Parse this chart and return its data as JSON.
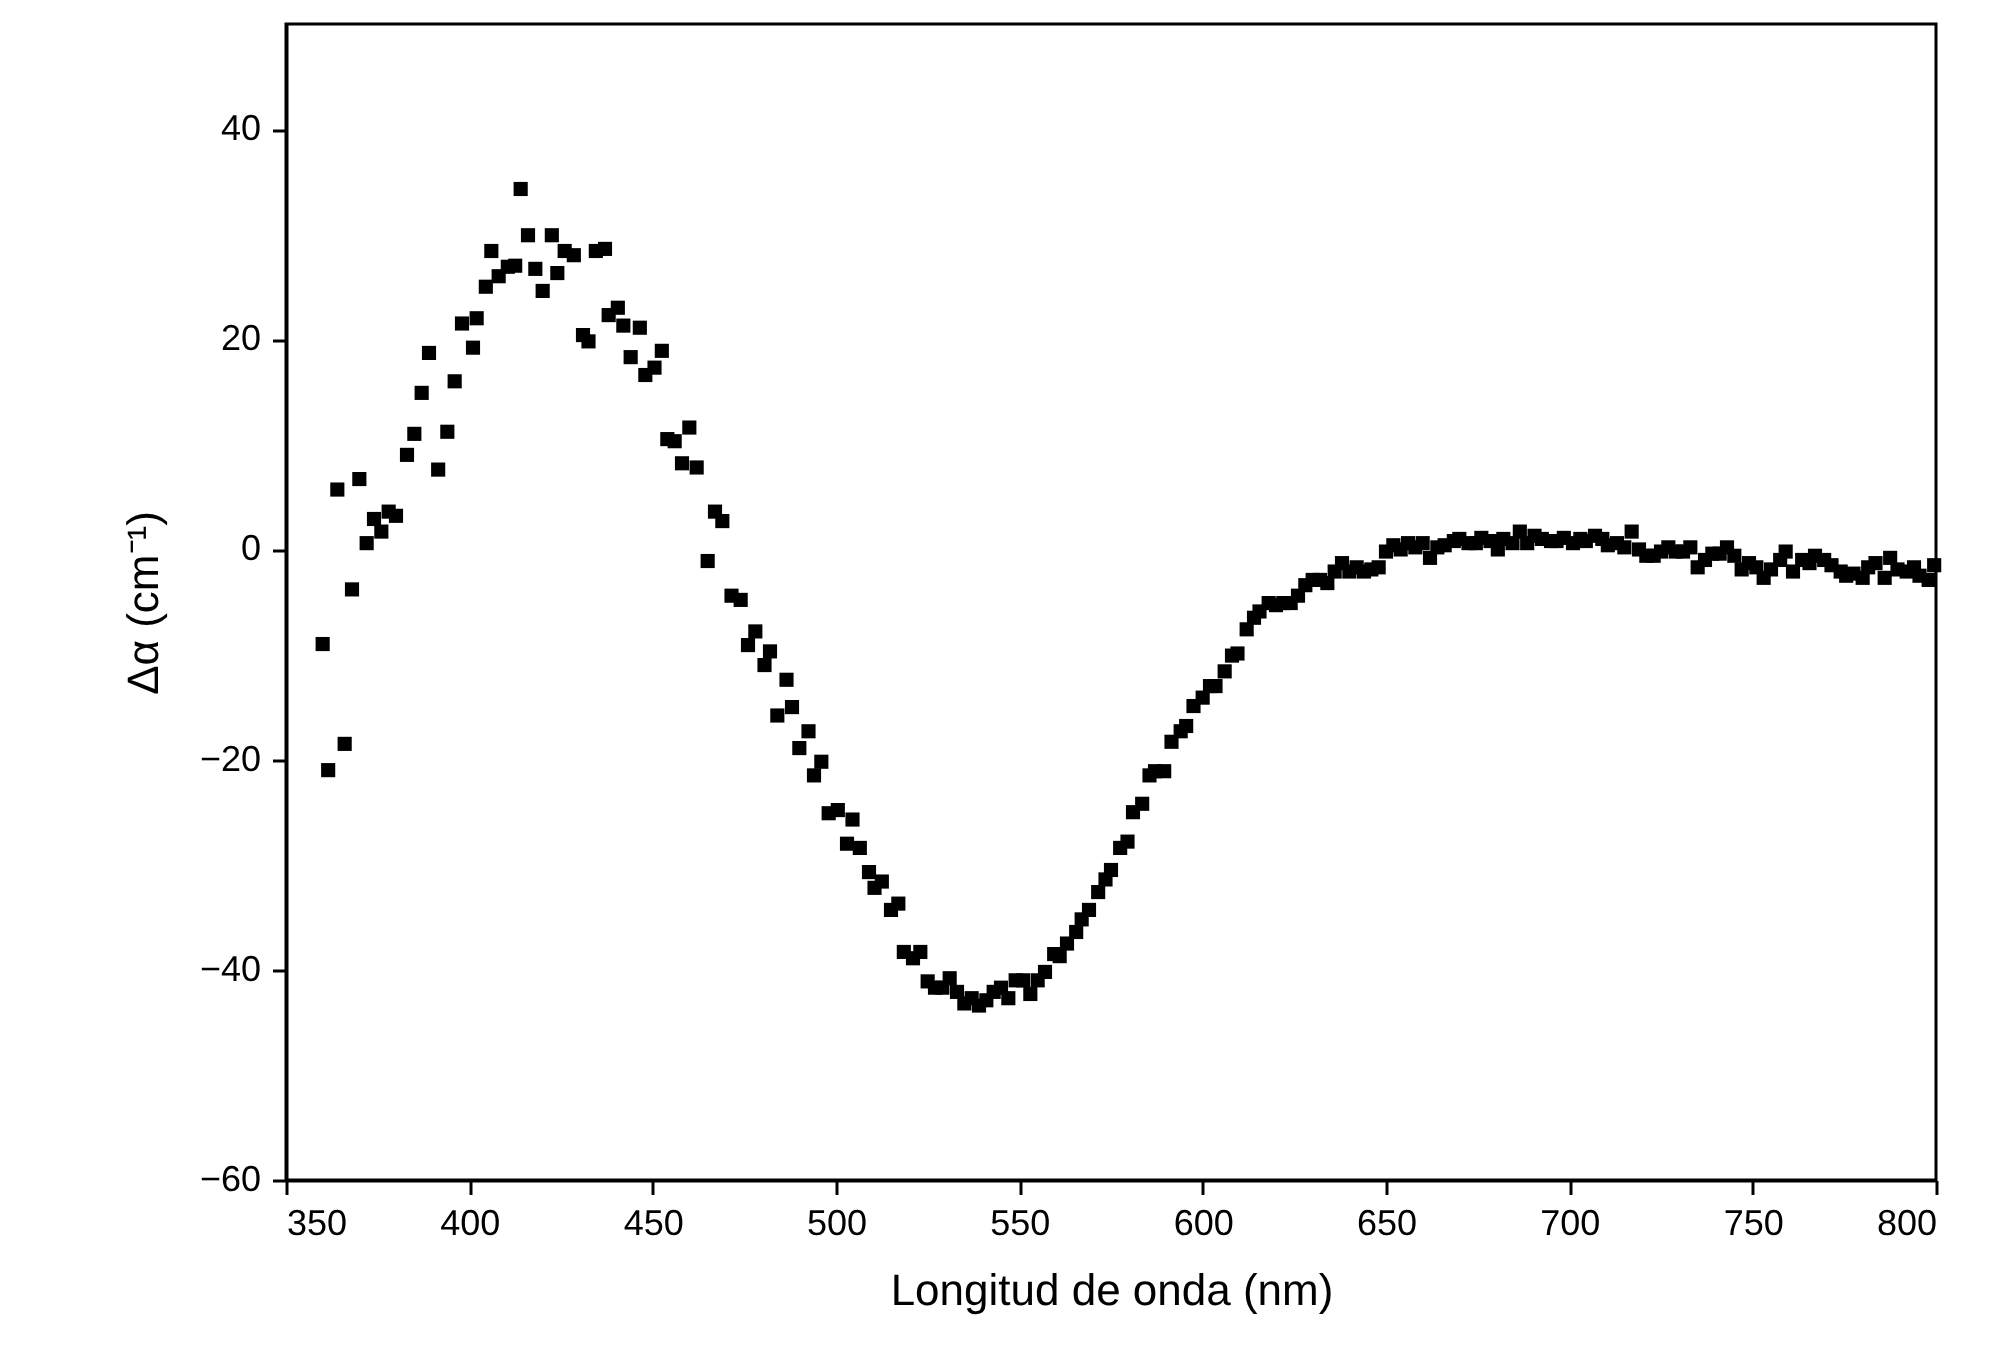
{
  "chart_data": {
    "type": "scatter",
    "xlabel": "Longitud de onda (nm)",
    "ylabel": "Δα (cm⁻¹)",
    "marker": "square",
    "grid": false,
    "xlim": [
      350,
      800
    ],
    "xticks": [
      350,
      400,
      450,
      500,
      550,
      600,
      650,
      700,
      750,
      800
    ],
    "ylim": [
      -60,
      50
    ],
    "yticks": [
      -60,
      -40,
      -20,
      0,
      20,
      40
    ],
    "series": [
      {
        "color": "#000000",
        "x": [
          360,
          361.5,
          364,
          366,
          368,
          370,
          372,
          374,
          376,
          378,
          380,
          383,
          385,
          387,
          389,
          391.5,
          394,
          396,
          398,
          401,
          402,
          404.5,
          406,
          408,
          410.5,
          412.5,
          414,
          416,
          418,
          420,
          422.5,
          424,
          426,
          428.5,
          431,
          432.5,
          434.5,
          437,
          438,
          440.5,
          442,
          444,
          446.5,
          448,
          450.5,
          452.5,
          454,
          456,
          458,
          460,
          462,
          465,
          467,
          469,
          471.5,
          474,
          476,
          478,
          480.5,
          482,
          484,
          486.5,
          488,
          490,
          492.5,
          494,
          496,
          498,
          500.5,
          503,
          504.5,
          506.5,
          509,
          510.5,
          512.5,
          515,
          517,
          518.5,
          521,
          523,
          525,
          527,
          529,
          531,
          533,
          535,
          537,
          539,
          541,
          543,
          545,
          547,
          549,
          551,
          553,
          555,
          557,
          559.5,
          561,
          563,
          565.5,
          567,
          569,
          571.5,
          573.5,
          575,
          577.5,
          579.5,
          581,
          583.5,
          585.5,
          587,
          589.5,
          591.5,
          594,
          595.5,
          597.5,
          600,
          602,
          603.5,
          606,
          608,
          609.5,
          612,
          614,
          615.5,
          618,
          620,
          622,
          624,
          626,
          628,
          630,
          632,
          634,
          636,
          638,
          640,
          642,
          644,
          646,
          648,
          650,
          652,
          654,
          656,
          658,
          660,
          662,
          664,
          666,
          668.5,
          670,
          672.5,
          674.5,
          676,
          678.5,
          680.5,
          682,
          684.5,
          686.5,
          688.5,
          690.5,
          692.5,
          695,
          696.5,
          698.5,
          701,
          703,
          704.5,
          707,
          709,
          710.5,
          713,
          715,
          717,
          719,
          721,
          723,
          725,
          727,
          729,
          731,
          733,
          735,
          737,
          739,
          741,
          743,
          745,
          747,
          749,
          751,
          753,
          755,
          757.5,
          759,
          761,
          763.5,
          765.5,
          767,
          769.5,
          771.5,
          774,
          775.5,
          777.5,
          780,
          781.5,
          783.5,
          786,
          787.5,
          789.5,
          792,
          794,
          795.5,
          798,
          799.5
        ],
        "values": [
          -9,
          -21,
          5.7,
          -18.5,
          -3.8,
          6.7,
          0.6,
          2.9,
          1.7,
          3.6,
          3.2,
          9,
          11,
          14.9,
          18.7,
          7.6,
          11.2,
          16,
          21.5,
          19.2,
          22,
          25,
          28.4,
          26,
          26.9,
          27,
          34.3,
          29.9,
          26.7,
          24.6,
          29.9,
          26.3,
          28.4,
          28,
          20.4,
          19.8,
          28.4,
          28.6,
          22.3,
          23,
          21.3,
          18.3,
          21.1,
          16.6,
          17.3,
          18.9,
          10.5,
          10.3,
          8.2,
          11.6,
          7.8,
          -1.1,
          3.6,
          2.7,
          -4.4,
          -4.8,
          -9.1,
          -7.8,
          -11,
          -9.7,
          -15.8,
          -12.4,
          -15,
          -18.9,
          -17.3,
          -21.5,
          -20.2,
          -25.1,
          -24.8,
          -28,
          -25.7,
          -28.4,
          -30.7,
          -32.2,
          -31.6,
          -34.3,
          -33.7,
          -38.3,
          -38.9,
          -38.3,
          -41.1,
          -41.7,
          -41.7,
          -40.8,
          -42.1,
          -43.2,
          -42.7,
          -43.4,
          -42.9,
          -42.1,
          -41.7,
          -42.7,
          -41,
          -41,
          -42.3,
          -41,
          -40.2,
          -38.5,
          -38.7,
          -37.5,
          -36.4,
          -35.2,
          -34.3,
          -32.6,
          -31.4,
          -30.5,
          -28.4,
          -27.8,
          -25,
          -24.2,
          -21.5,
          -21.1,
          -21.1,
          -18.3,
          -17.3,
          -16.8,
          -14.9,
          -14.1,
          -13,
          -13,
          -11.6,
          -10.1,
          -9.9,
          -7.6,
          -6.5,
          -5.9,
          -5.1,
          -5.3,
          -5.1,
          -5.1,
          -4.4,
          -3.4,
          -2.9,
          -2.9,
          -3.2,
          -2.1,
          -1.3,
          -2.1,
          -1.7,
          -2.1,
          -1.9,
          -1.7,
          -0.2,
          0.4,
          0,
          0.6,
          0.2,
          0.6,
          -0.8,
          0.2,
          0.4,
          0.8,
          1,
          0.6,
          0.6,
          1.1,
          0.8,
          0,
          1,
          0.6,
          1.7,
          0.6,
          1.3,
          1,
          0.8,
          0.8,
          1.1,
          0.6,
          1,
          0.8,
          1.3,
          1,
          0.4,
          0.6,
          0.2,
          1.7,
          0,
          -0.6,
          -0.6,
          -0.2,
          0.2,
          -0.2,
          -0.2,
          0.2,
          -1.7,
          -1,
          -0.4,
          -0.4,
          0.2,
          -0.6,
          -1.9,
          -1.3,
          -1.7,
          -2.7,
          -1.9,
          -1,
          -0.2,
          -2.1,
          -1,
          -1.3,
          -0.6,
          -1,
          -1.5,
          -2.1,
          -2.5,
          -2.3,
          -2.7,
          -1.7,
          -1.3,
          -2.7,
          -0.8,
          -1.9,
          -2.1,
          -1.7,
          -2.5,
          -2.9,
          -1.5
        ]
      }
    ]
  }
}
